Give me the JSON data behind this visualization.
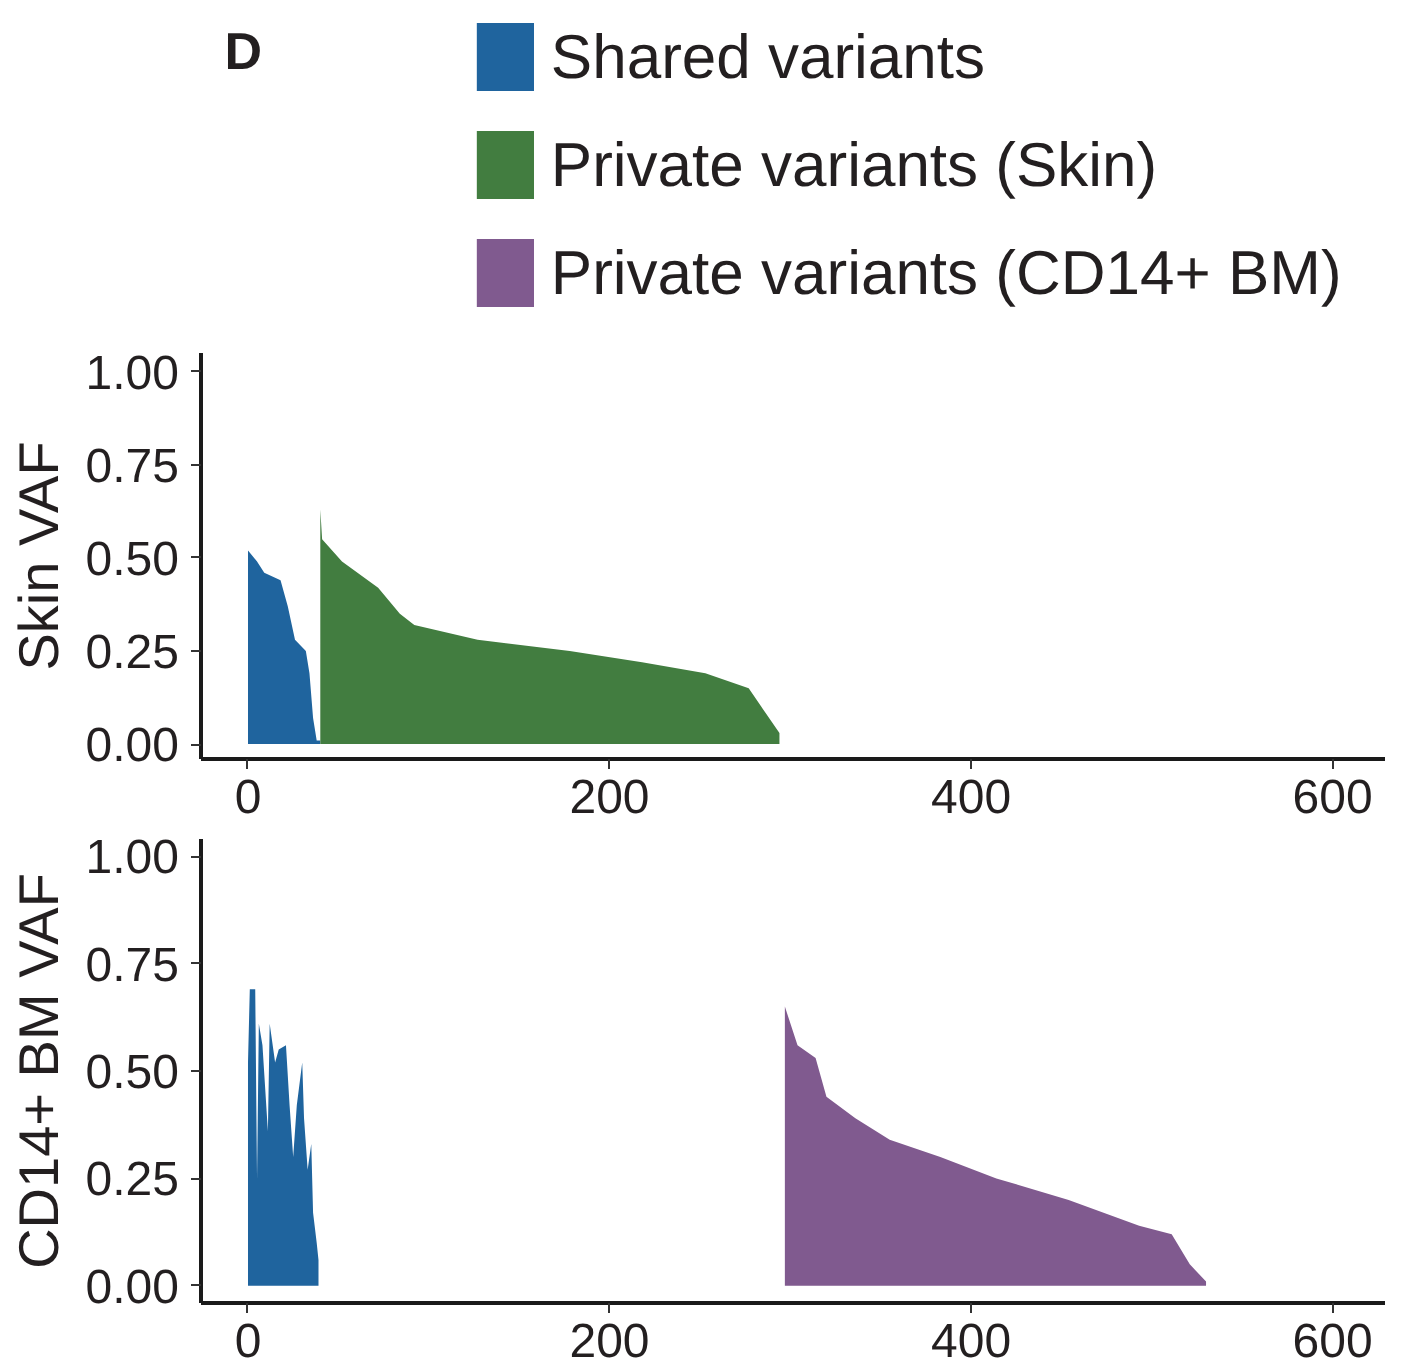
{
  "chart_data": [
    {
      "type": "area",
      "title": "D",
      "ylabel": "Skin VAF",
      "xlim": [
        -26,
        629
      ],
      "ylim": [
        -0.04,
        1.05
      ],
      "xticks": [
        0,
        200,
        400,
        600
      ],
      "yticks": [
        {
          "value": 0,
          "label": "0.00"
        },
        {
          "value": 0.25,
          "label": "0.25"
        },
        {
          "value": 0.5,
          "label": "0.50"
        },
        {
          "value": 0.75,
          "label": "0.75"
        },
        {
          "value": 1,
          "label": "1.00"
        }
      ],
      "grid": false,
      "legend": "top",
      "series": [
        {
          "name": "Shared variants",
          "color": "#1f649e",
          "x": [
            0,
            5,
            9,
            18,
            22,
            26,
            32,
            34,
            36,
            38,
            40
          ],
          "values": [
            0.52,
            0.49,
            0.46,
            0.44,
            0.37,
            0.28,
            0.25,
            0.19,
            0.07,
            0.01,
            0.01
          ]
        },
        {
          "name": "Private variants (Skin)",
          "color": "#427d40",
          "x": [
            40,
            41,
            52,
            72,
            84,
            92,
            127,
            178,
            218,
            253,
            277,
            284,
            294
          ],
          "values": [
            0.63,
            0.55,
            0.49,
            0.42,
            0.35,
            0.32,
            0.28,
            0.25,
            0.22,
            0.19,
            0.15,
            0.1,
            0.03
          ]
        }
      ]
    },
    {
      "type": "area",
      "ylabel": "CD14+ BM VAF",
      "xlim": [
        -26,
        629
      ],
      "ylim": [
        -0.04,
        1.04
      ],
      "xticks": [
        0,
        200,
        400,
        600
      ],
      "yticks": [
        {
          "value": 0,
          "label": "0.00"
        },
        {
          "value": 0.25,
          "label": "0.25"
        },
        {
          "value": 0.5,
          "label": "0.50"
        },
        {
          "value": 0.75,
          "label": "0.75"
        },
        {
          "value": 1,
          "label": "1.00"
        }
      ],
      "grid": false,
      "legend": "top",
      "series": [
        {
          "name": "Shared variants",
          "color": "#1f649e",
          "x": [
            0,
            1,
            4,
            5,
            6,
            8,
            11,
            12,
            15,
            17,
            21,
            23,
            25,
            27,
            30,
            31,
            33,
            35,
            36,
            38,
            39
          ],
          "values": [
            0.52,
            0.69,
            0.69,
            0.25,
            0.61,
            0.56,
            0.36,
            0.61,
            0.52,
            0.55,
            0.56,
            0.42,
            0.3,
            0.42,
            0.52,
            0.39,
            0.27,
            0.33,
            0.17,
            0.1,
            0.06
          ]
        },
        {
          "name": "Private variants (CD14+ BM)",
          "color": "#805a8f",
          "x": [
            297,
            304,
            314,
            320,
            336,
            355,
            383,
            414,
            454,
            493,
            511,
            521,
            530
          ],
          "values": [
            0.65,
            0.56,
            0.53,
            0.44,
            0.39,
            0.34,
            0.3,
            0.25,
            0.2,
            0.14,
            0.12,
            0.05,
            0.01
          ]
        }
      ]
    }
  ]
}
